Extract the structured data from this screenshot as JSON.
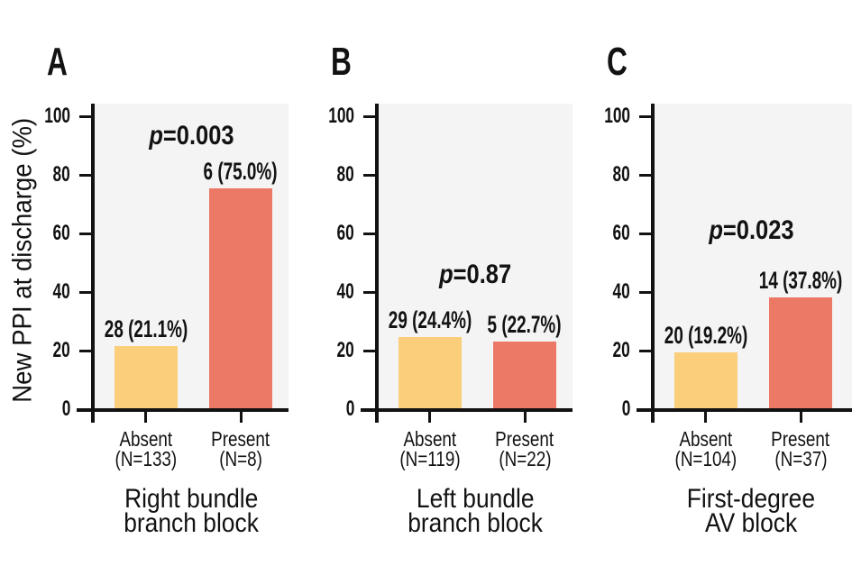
{
  "figure": {
    "y_axis_label": "New PPI at discharge (%)",
    "colors": {
      "absent_bar": "#FBCE7B",
      "present_bar": "#EC7966",
      "plot_bg": "#F4F4F4",
      "axis": "#121212"
    }
  },
  "chart_data": [
    {
      "type": "bar",
      "panel_letter": "A",
      "title_lines": [
        "Right bundle",
        "branch block"
      ],
      "title": "Right bundle branch block",
      "p_label": "p=0.003",
      "categories": [
        "Absent",
        "Present"
      ],
      "n_labels": [
        "(N=133)",
        "(N=8)"
      ],
      "counts": [
        28,
        6
      ],
      "values": [
        21.1,
        75.0
      ],
      "value_labels": [
        "28 (21.1%)",
        "6 (75.0%)"
      ],
      "ylabel": "New PPI at discharge (%)",
      "ylim": [
        0,
        100
      ],
      "yticks": [
        0,
        20,
        40,
        60,
        80,
        100
      ]
    },
    {
      "type": "bar",
      "panel_letter": "B",
      "title_lines": [
        "Left bundle",
        "branch block"
      ],
      "title": "Left bundle branch block",
      "p_label": "p=0.87",
      "categories": [
        "Absent",
        "Present"
      ],
      "n_labels": [
        "(N=119)",
        "(N=22)"
      ],
      "counts": [
        29,
        5
      ],
      "values": [
        24.4,
        22.7
      ],
      "value_labels": [
        "29 (24.4%)",
        "5 (22.7%)"
      ],
      "ylabel": "New PPI at discharge (%)",
      "ylim": [
        0,
        100
      ],
      "yticks": [
        0,
        20,
        40,
        60,
        80,
        100
      ]
    },
    {
      "type": "bar",
      "panel_letter": "C",
      "title_lines": [
        "First-degree",
        "AV block"
      ],
      "title": "First-degree AV block",
      "p_label": "p=0.023",
      "categories": [
        "Absent",
        "Present"
      ],
      "n_labels": [
        "(N=104)",
        "(N=37)"
      ],
      "counts": [
        20,
        14
      ],
      "values": [
        19.2,
        37.8
      ],
      "value_labels": [
        "20 (19.2%)",
        "14 (37.8%)"
      ],
      "ylabel": "New PPI at discharge (%)",
      "ylim": [
        0,
        100
      ],
      "yticks": [
        0,
        20,
        40,
        60,
        80,
        100
      ]
    }
  ]
}
